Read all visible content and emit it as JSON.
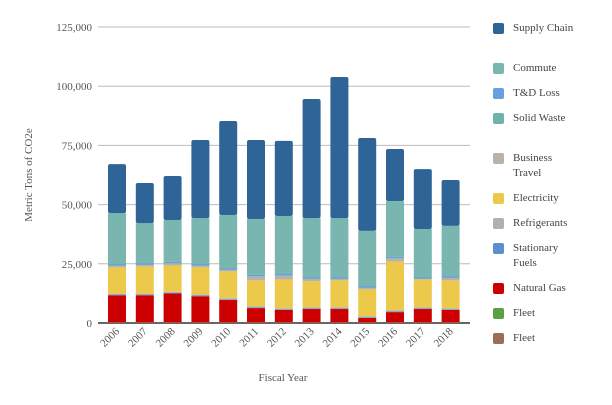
{
  "chart_data": {
    "type": "bar",
    "stacked": true,
    "title": "",
    "xlabel": "Fiscal Year",
    "ylabel": "Metric Tons of CO2e",
    "ylim": [
      0,
      125000
    ],
    "yticks": [
      "0",
      "25,000",
      "50,000",
      "75,000",
      "100,000",
      "125,000"
    ],
    "grid": true,
    "legend_position": "right",
    "categories": [
      "2006",
      "2007",
      "2008",
      "2009",
      "2010",
      "2011",
      "2012",
      "2013",
      "2014",
      "2015",
      "2016",
      "2017",
      "2018"
    ],
    "series": [
      {
        "name": "Fleet",
        "color": "#9a6f55",
        "values": [
          300,
          300,
          300,
          300,
          300,
          300,
          300,
          300,
          300,
          300,
          300,
          300,
          300
        ]
      },
      {
        "name": "Fleet",
        "color": "#5aa145",
        "values": [
          0,
          0,
          0,
          0,
          0,
          0,
          0,
          0,
          0,
          0,
          0,
          0,
          0
        ]
      },
      {
        "name": "Natural Gas",
        "color": "#cc0000",
        "values": [
          11400,
          11400,
          12200,
          11000,
          9400,
          6000,
          5200,
          5600,
          5600,
          1800,
          4300,
          5600,
          5200
        ]
      },
      {
        "name": "Stationary Fuels",
        "color": "#5b8fd0",
        "values": [
          300,
          300,
          300,
          300,
          300,
          300,
          300,
          300,
          300,
          300,
          300,
          300,
          300
        ]
      },
      {
        "name": "Refrigerants",
        "color": "#b0b0b0",
        "values": [
          400,
          400,
          400,
          400,
          400,
          400,
          400,
          400,
          400,
          400,
          400,
          400,
          400
        ]
      },
      {
        "name": "Electricity",
        "color": "#ecc94b",
        "values": [
          11100,
          11500,
          11100,
          11500,
          11400,
          11000,
          12200,
          11000,
          11400,
          11400,
          20700,
          11800,
          11800
        ]
      },
      {
        "name": "Business Travel",
        "color": "#b9b2a8",
        "values": [
          600,
          600,
          800,
          600,
          600,
          1500,
          1500,
          1000,
          600,
          600,
          1100,
          200,
          1000
        ]
      },
      {
        "name": "Solid Waste",
        "color": "#6fb3aa",
        "values": [
          200,
          200,
          200,
          200,
          200,
          200,
          200,
          200,
          200,
          200,
          200,
          200,
          200
        ]
      },
      {
        "name": "T&D Loss",
        "color": "#6a9ede",
        "values": [
          600,
          600,
          600,
          600,
          600,
          600,
          600,
          600,
          600,
          600,
          600,
          600,
          600
        ]
      },
      {
        "name": "Commute",
        "color": "#7ab6b0",
        "values": [
          21500,
          16900,
          17600,
          19400,
          22400,
          23600,
          24500,
          24900,
          24900,
          23300,
          23600,
          20300,
          21200
        ]
      },
      {
        "name": "Supply Chain",
        "color": "#2f6496",
        "values": [
          20700,
          16900,
          18600,
          33000,
          39700,
          33400,
          31700,
          50300,
          59600,
          39200,
          22000,
          25300,
          19400
        ]
      }
    ],
    "legend": [
      {
        "label": "Supply Chain",
        "color": "#2f6496"
      },
      {
        "label": "Commute",
        "color": "#7ab6b0"
      },
      {
        "label": "T&D Loss",
        "color": "#6a9ede"
      },
      {
        "label": "Solid Waste",
        "color": "#6fb3aa"
      },
      {
        "label": "Business Travel",
        "color": "#b9b2a8"
      },
      {
        "label": "Electricity",
        "color": "#ecc94b"
      },
      {
        "label": "Refrigerants",
        "color": "#b0b0b0"
      },
      {
        "label": "Stationary Fuels",
        "color": "#5b8fd0"
      },
      {
        "label": "Natural Gas",
        "color": "#cc0000"
      },
      {
        "label": "Fleet",
        "color": "#5aa145"
      },
      {
        "label": "Fleet",
        "color": "#9a6f55"
      }
    ]
  }
}
